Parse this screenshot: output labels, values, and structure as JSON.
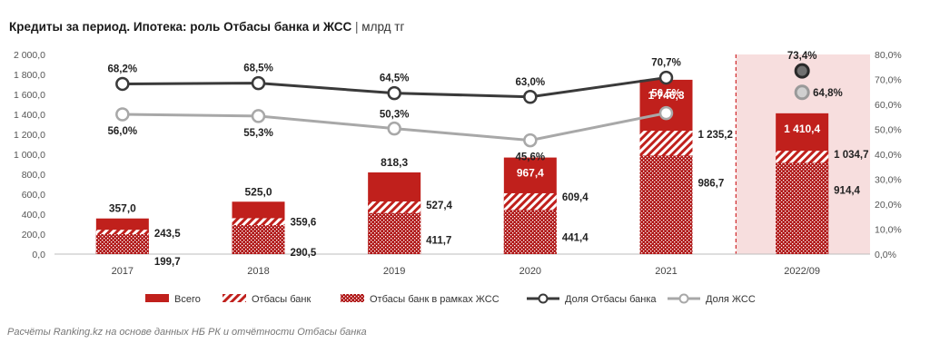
{
  "title": {
    "main": "Кредиты за период. Ипотека: роль Отбасы банка и ЖСС",
    "separator": "|",
    "unit": "млрд тг"
  },
  "source": "Расчёты Ranking.kz на основе данных НБ РК и отчётности Отбасы банка",
  "colors": {
    "total": "#c0201c",
    "otbasy_hatch": "#c0201c",
    "zhss_pattern": "#b01818",
    "line_otbasy": "#3a3a3a",
    "line_zhss": "#a8a8a8",
    "highlight_bg": "#f7dede",
    "highlight_border": "#d0282a"
  },
  "chart_data": {
    "type": "bar",
    "categories": [
      "2017",
      "2018",
      "2019",
      "2020",
      "2021",
      "2022/09"
    ],
    "series": [
      {
        "name": "Всего",
        "kind": "bar",
        "values": [
          357.0,
          525.0,
          818.3,
          967.4,
          1746.3,
          1410.4
        ],
        "labels": [
          "357,0",
          "525,0",
          "818,3",
          "967,4",
          "1 746,3",
          "1 410,4"
        ]
      },
      {
        "name": "Отбасы банк",
        "kind": "bar",
        "values": [
          243.5,
          359.6,
          527.4,
          609.4,
          1235.2,
          1034.7
        ],
        "labels": [
          "243,5",
          "359,6",
          "527,4",
          "609,4",
          "1 235,2",
          "1 034,7"
        ]
      },
      {
        "name": "Отбасы банк в рамках ЖСС",
        "kind": "bar",
        "values": [
          199.7,
          290.5,
          411.7,
          441.4,
          986.7,
          914.4
        ],
        "labels": [
          "199,7",
          "290,5",
          "411,7",
          "441,4",
          "986,7",
          "914,4"
        ]
      },
      {
        "name": "Доля Отбасы банка",
        "kind": "line",
        "axis": "right",
        "values": [
          68.2,
          68.5,
          64.5,
          63.0,
          70.7,
          73.4
        ],
        "labels": [
          "68,2%",
          "68,5%",
          "64,5%",
          "63,0%",
          "70,7%",
          "73,4%"
        ]
      },
      {
        "name": "Доля ЖСС",
        "kind": "line",
        "axis": "right",
        "values": [
          56.0,
          55.3,
          50.3,
          45.6,
          56.5,
          64.8
        ],
        "labels": [
          "56,0%",
          "55,3%",
          "50,3%",
          "45,6%",
          "56,5%",
          "64,8%"
        ]
      }
    ],
    "y_left": {
      "min": 0,
      "max": 2000,
      "step": 200,
      "tick_labels": [
        "0,0",
        "200,0",
        "400,0",
        "600,0",
        "800,0",
        "1 000,0",
        "1 200,0",
        "1 400,0",
        "1 600,0",
        "1 800,0",
        "2 000,0"
      ]
    },
    "y_right": {
      "min": 0,
      "max": 80,
      "step": 10,
      "tick_labels": [
        "0,0%",
        "10,0%",
        "20,0%",
        "30,0%",
        "40,0%",
        "50,0%",
        "60,0%",
        "70,0%",
        "80,0%"
      ]
    },
    "grid": false,
    "legend_position": "bottom",
    "highlighted_category": "2022/09"
  }
}
